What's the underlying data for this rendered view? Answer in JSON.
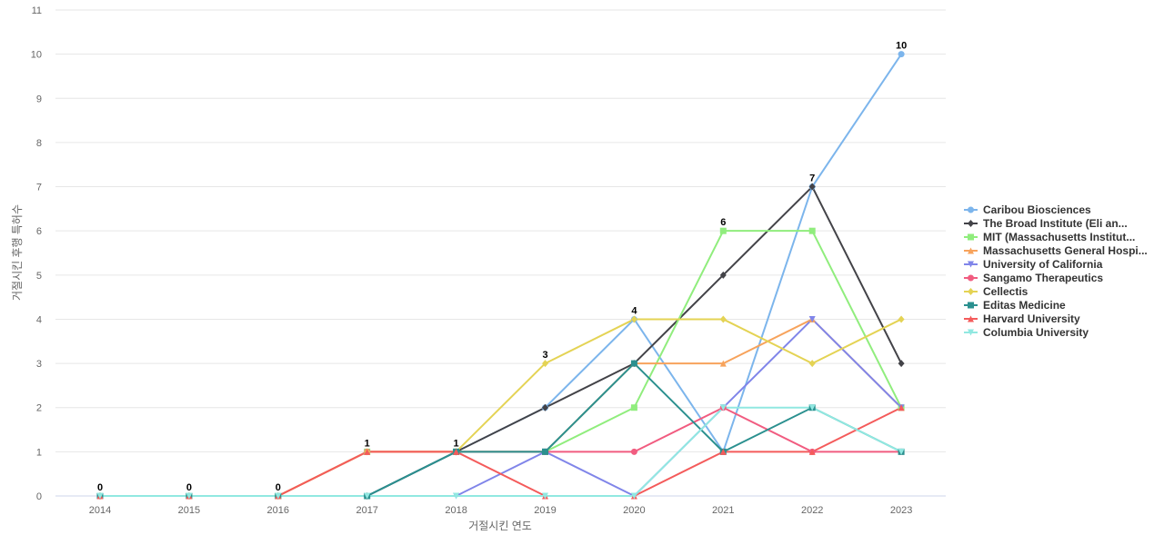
{
  "chart_data": {
    "type": "line",
    "title": "",
    "xlabel": "거절시킨 연도",
    "ylabel": "거절시킨 후행 특허수",
    "categories": [
      "2014",
      "2015",
      "2016",
      "2017",
      "2018",
      "2019",
      "2020",
      "2021",
      "2022",
      "2023"
    ],
    "ylim": [
      0,
      11
    ],
    "yticks": [
      0,
      1,
      2,
      3,
      4,
      5,
      6,
      7,
      8,
      9,
      10,
      11
    ],
    "grid": "horizontal",
    "legend_position": "right",
    "series": [
      {
        "name": "Caribou Biosciences",
        "color": "#7cb5ec",
        "marker": "circle",
        "values": [
          0,
          0,
          0,
          0,
          1,
          2,
          4,
          1,
          7,
          10
        ]
      },
      {
        "name": "The Broad Institute (Eli an...",
        "color": "#434348",
        "marker": "diamond",
        "values": [
          0,
          0,
          0,
          0,
          1,
          2,
          3,
          5,
          7,
          3
        ]
      },
      {
        "name": "MIT (Massachusetts Institut...",
        "color": "#90ed7d",
        "marker": "square",
        "values": [
          0,
          0,
          0,
          1,
          1,
          1,
          2,
          6,
          6,
          2
        ]
      },
      {
        "name": "Massachusetts General Hospi...",
        "color": "#f7a35c",
        "marker": "triangle",
        "values": [
          0,
          0,
          0,
          1,
          1,
          1,
          3,
          3,
          4,
          2
        ]
      },
      {
        "name": "University of California",
        "color": "#8085e9",
        "marker": "triangle-down",
        "values": [
          0,
          0,
          0,
          0,
          0,
          1,
          0,
          2,
          4,
          2
        ]
      },
      {
        "name": "Sangamo Therapeutics",
        "color": "#f15c80",
        "marker": "circle",
        "values": [
          0,
          0,
          0,
          1,
          1,
          1,
          1,
          2,
          1,
          1
        ]
      },
      {
        "name": "Cellectis",
        "color": "#e4d354",
        "marker": "diamond",
        "values": [
          0,
          0,
          0,
          1,
          1,
          3,
          4,
          4,
          3,
          4
        ]
      },
      {
        "name": "Editas Medicine",
        "color": "#2b908f",
        "marker": "square",
        "values": [
          0,
          0,
          0,
          0,
          1,
          1,
          3,
          1,
          2,
          1
        ]
      },
      {
        "name": "Harvard University",
        "color": "#f45b5b",
        "marker": "triangle",
        "values": [
          0,
          0,
          0,
          1,
          1,
          0,
          0,
          1,
          1,
          2
        ]
      },
      {
        "name": "Columbia University",
        "color": "#91e8e1",
        "marker": "triangle-down",
        "values": [
          0,
          0,
          0,
          0,
          0,
          0,
          0,
          2,
          2,
          1
        ]
      }
    ],
    "data_labels": [
      0,
      0,
      0,
      1,
      1,
      3,
      4,
      6,
      7,
      10
    ]
  }
}
